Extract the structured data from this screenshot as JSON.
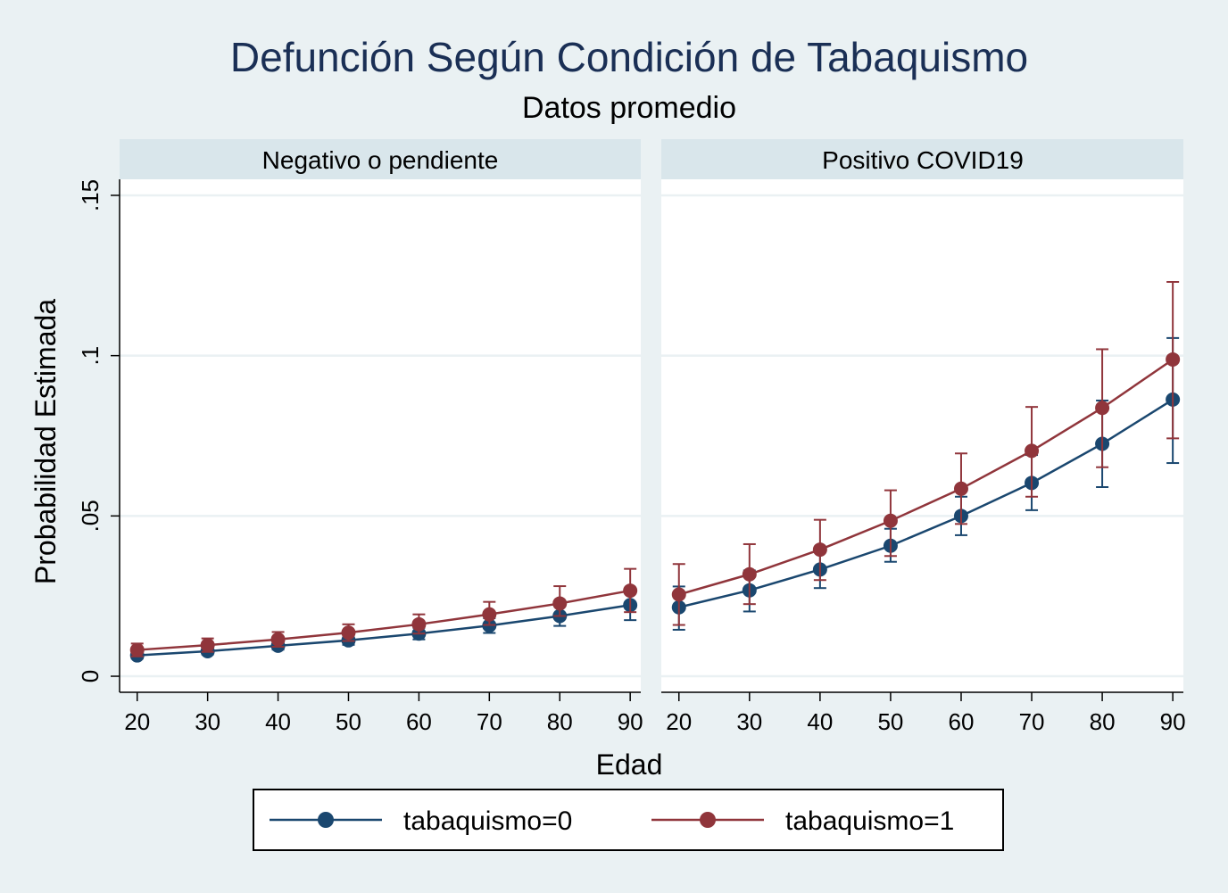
{
  "chart_data": {
    "type": "line",
    "title": "Defunción Según Condición de Tabaquismo",
    "subtitle": "Datos promedio",
    "xlabel": "Edad",
    "ylabel": "Probabilidad Estimada",
    "x_ticks": [
      20,
      30,
      40,
      50,
      60,
      70,
      80,
      90
    ],
    "y_ticks": [
      0,
      0.05,
      0.1,
      0.15
    ],
    "y_tick_labels": [
      "0",
      ".05",
      ".1",
      ".15"
    ],
    "xlim": [
      17.5,
      91.5
    ],
    "ylim": [
      -0.005,
      0.155
    ],
    "grid": true,
    "legend_position": "bottom",
    "panels": [
      {
        "label": "Negativo o pendiente",
        "series": [
          {
            "name": "tabaquismo=0",
            "color": "#1a476f",
            "x": [
              20,
              30,
              40,
              50,
              60,
              70,
              80,
              90
            ],
            "y": [
              0.0065,
              0.0078,
              0.0095,
              0.0112,
              0.0133,
              0.0158,
              0.0188,
              0.0222
            ],
            "ci_low": [
              0.0055,
              0.0068,
              0.0083,
              0.0098,
              0.0115,
              0.0135,
              0.0157,
              0.0175
            ],
            "ci_high": [
              0.0075,
              0.0088,
              0.0107,
              0.0126,
              0.0151,
              0.0181,
              0.0219,
              0.0268
            ]
          },
          {
            "name": "tabaquismo=1",
            "color": "#90353b",
            "x": [
              20,
              30,
              40,
              50,
              60,
              70,
              80,
              90
            ],
            "y": [
              0.0082,
              0.0097,
              0.0115,
              0.0136,
              0.0162,
              0.0193,
              0.0227,
              0.0267
            ],
            "ci_low": [
              0.0062,
              0.0076,
              0.0092,
              0.011,
              0.0133,
              0.016,
              0.0188,
              0.02
            ],
            "ci_high": [
              0.0102,
              0.0118,
              0.0138,
              0.0162,
              0.0193,
              0.0232,
              0.0281,
              0.0335
            ]
          }
        ]
      },
      {
        "label": "Positivo COVID19",
        "series": [
          {
            "name": "tabaquismo=0",
            "color": "#1a476f",
            "x": [
              20,
              30,
              40,
              50,
              60,
              70,
              80,
              90
            ],
            "y": [
              0.0215,
              0.0268,
              0.0333,
              0.0407,
              0.05,
              0.0603,
              0.0725,
              0.0863
            ],
            "ci_low": [
              0.0145,
              0.0202,
              0.0275,
              0.0357,
              0.044,
              0.0518,
              0.059,
              0.0665
            ],
            "ci_high": [
              0.028,
              0.033,
              0.039,
              0.046,
              0.056,
              0.069,
              0.086,
              0.1055
            ]
          },
          {
            "name": "tabaquismo=1",
            "color": "#90353b",
            "x": [
              20,
              30,
              40,
              50,
              60,
              70,
              80,
              90
            ],
            "y": [
              0.0255,
              0.0318,
              0.0395,
              0.0485,
              0.0585,
              0.0703,
              0.0837,
              0.0988
            ],
            "ci_low": [
              0.016,
              0.0225,
              0.03,
              0.0375,
              0.0475,
              0.056,
              0.0652,
              0.0742
            ],
            "ci_high": [
              0.035,
              0.0412,
              0.0488,
              0.058,
              0.0695,
              0.084,
              0.102,
              0.123
            ]
          }
        ]
      }
    ]
  }
}
